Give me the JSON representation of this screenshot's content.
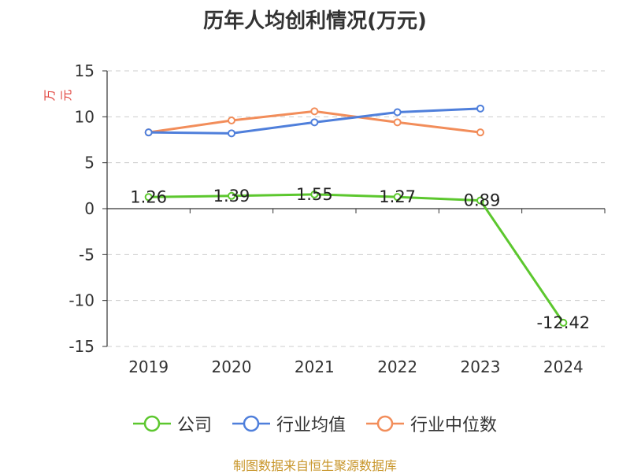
{
  "title": "历年人均创利情况(万元)",
  "source": "制图数据来自恒生聚源数据库",
  "chart_data": {
    "type": "line",
    "title": "历年人均创利情况(万元)",
    "ylabel": "万元",
    "xlabel": "",
    "categories": [
      "2019",
      "2020",
      "2021",
      "2022",
      "2023",
      "2024"
    ],
    "ylim": [
      -15,
      15
    ],
    "yticks": [
      15,
      10,
      5,
      0,
      -5,
      -10,
      -15
    ],
    "grid": true,
    "legend_position": "bottom",
    "series": [
      {
        "name": "公司",
        "color": "#5cc72e",
        "values": [
          1.26,
          1.39,
          1.55,
          1.27,
          0.89,
          -12.42
        ],
        "labels": [
          "1.26",
          "1.39",
          "1.55",
          "1.27",
          "0.89",
          "-12.42"
        ]
      },
      {
        "name": "行业均值",
        "color": "#4f7fdb",
        "values": [
          8.3,
          8.2,
          9.4,
          10.5,
          10.9,
          null
        ]
      },
      {
        "name": "行业中位数",
        "color": "#f28d5a",
        "values": [
          8.3,
          9.6,
          10.6,
          9.4,
          8.3,
          null
        ]
      }
    ]
  }
}
